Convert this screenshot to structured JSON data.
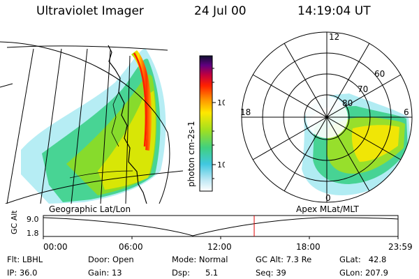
{
  "header": {
    "title": "Ultraviolet Imager",
    "date": "24 Jul 00",
    "time": "14:19:04 UT"
  },
  "colorbar": {
    "label": "photon cm-2s-1",
    "ticks": [
      "100",
      "10"
    ]
  },
  "polar_plot": {
    "mlt_labels": {
      "top": "12",
      "left": "18",
      "right": "6",
      "bottom": "0"
    },
    "lat_labels": [
      "60",
      "70",
      "80"
    ]
  },
  "panel_labels": {
    "left": "Geographic Lat/Lon",
    "right": "Apex MLat/MLT"
  },
  "altitude_track": {
    "axis_label": "GC Alt",
    "y_ticks": [
      "9.0",
      "1.8"
    ],
    "x_ticks": [
      "00:00",
      "06:00",
      "12:00",
      "18:00",
      "23:59"
    ],
    "marker_color": "#e00000"
  },
  "info": {
    "flt": "Flt: LBHL",
    "ip": "IP: 36.0",
    "door": "Door: Open",
    "gain": "Gain: 13",
    "mode": "Mode: Normal",
    "dsp": "Dsp:      5.1",
    "gcalt": "GC Alt: 7.3 Re",
    "seq": "Seq: 39",
    "glat": "GLat:   42.8",
    "glon": "GLon: 207.9"
  }
}
